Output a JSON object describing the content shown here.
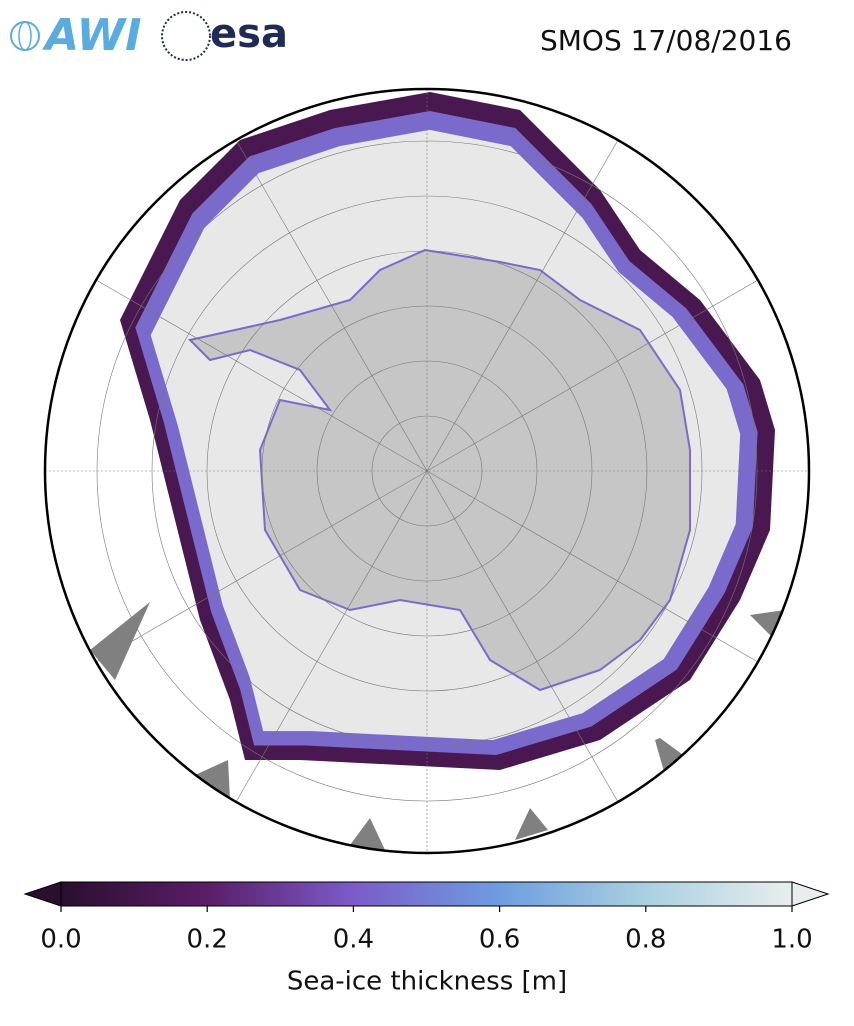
{
  "logos": {
    "awi": "AWI",
    "esa": "esa"
  },
  "title": "SMOS 17/08/2016",
  "colorbar": {
    "label": "Sea-ice thickness [m]",
    "lim": [
      0,
      1
    ],
    "ticks": [
      {
        "value": 0,
        "label": "0.0"
      },
      {
        "value": 0.2,
        "label": "0.2"
      },
      {
        "value": 0.4,
        "label": "0.4"
      },
      {
        "value": 0.6,
        "label": "0.6"
      },
      {
        "value": 0.8,
        "label": "0.8"
      },
      {
        "value": 1,
        "label": "1.0"
      }
    ],
    "colors": [
      "#2a0f2e",
      "#5a1d68",
      "#7b5cc8",
      "#6e9de0",
      "#a9d0e0",
      "#e8eeee"
    ]
  }
}
